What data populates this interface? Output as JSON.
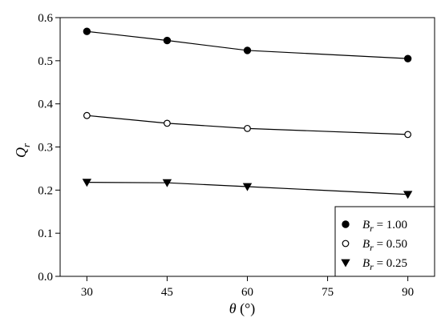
{
  "chart_data": {
    "type": "line",
    "xlabel_symbol": "θ",
    "xlabel_unit": " (°)",
    "ylabel_main": "Q",
    "ylabel_sub": "r",
    "xlim": [
      25,
      95
    ],
    "ylim": [
      0.0,
      0.6
    ],
    "xticks": [
      30,
      45,
      60,
      75,
      90
    ],
    "xtick_labels": [
      "30",
      "45",
      "60",
      "75",
      "90"
    ],
    "yticks": [
      0.0,
      0.1,
      0.2,
      0.3,
      0.4,
      0.5,
      0.6
    ],
    "ytick_labels": [
      "0.0",
      "0.1",
      "0.2",
      "0.3",
      "0.4",
      "0.5",
      "0.6"
    ],
    "grid": false,
    "legend_position": "bottom-right",
    "x": [
      30,
      45,
      60,
      90
    ],
    "series": [
      {
        "name_main": "B",
        "name_sub": "r",
        "name_value": " = 1.00",
        "marker": "filled-circle",
        "values": [
          0.568,
          0.547,
          0.524,
          0.505
        ]
      },
      {
        "name_main": "B",
        "name_sub": "r",
        "name_value": " = 0.50",
        "marker": "open-circle",
        "values": [
          0.373,
          0.355,
          0.343,
          0.329
        ]
      },
      {
        "name_main": "B",
        "name_sub": "r",
        "name_value": " = 0.25",
        "marker": "filled-triangle-down",
        "values": [
          0.218,
          0.217,
          0.208,
          0.19
        ]
      }
    ]
  },
  "colors": {
    "line": "#000000",
    "marker_fill": "#000000",
    "open_marker_fill": "#ffffff"
  }
}
